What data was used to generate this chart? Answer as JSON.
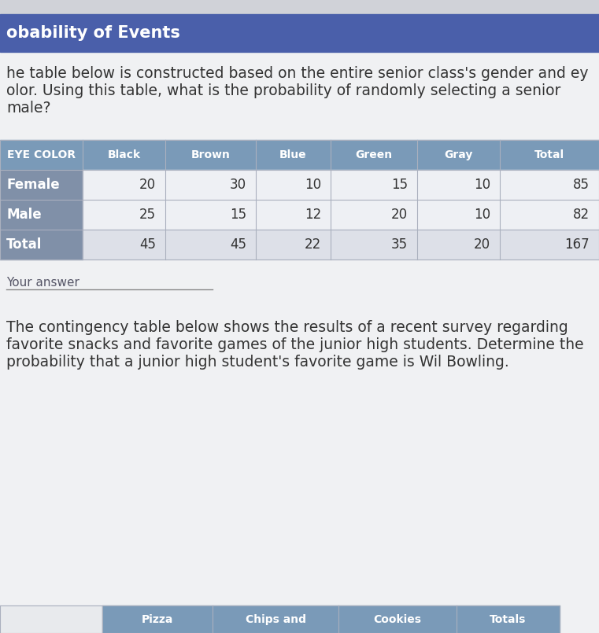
{
  "header_bar_color": "#4a5faa",
  "header_bar_text": "obability of Events",
  "header_bar_fontsize": 15,
  "header_bar_text_color": "#ffffff",
  "page_bg_color": "#e8eaed",
  "body_bg_color": "#f0f1f3",
  "top_strip_color": "#d0d2d8",
  "paragraph1_line1": "he table below is constructed based on the entire senior class's gender and ey",
  "paragraph1_line2": "olor. Using this table, what is the probability of randomly selecting a senior",
  "paragraph1_line3": "male?",
  "paragraph1_fontsize": 13.5,
  "paragraph1_color": "#333333",
  "table1_header_bg": "#7a9ab8",
  "table1_header_text_color": "#ffffff",
  "table1_first_col_bg": "#8090a8",
  "table1_data_bg": "#eef0f4",
  "table1_data_alt_bg": "#dde0e8",
  "table1_sep_color": "#aab0be",
  "table1_col_headers": [
    "EYE COLOR",
    "Black",
    "Brown",
    "Blue",
    "Green",
    "Gray",
    "Total"
  ],
  "table1_rows": [
    [
      "Female",
      "20",
      "30",
      "10",
      "15",
      "10",
      "85"
    ],
    [
      "Male",
      "25",
      "15",
      "12",
      "20",
      "10",
      "82"
    ],
    [
      "Total",
      "45",
      "45",
      "22",
      "35",
      "20",
      "167"
    ]
  ],
  "your_answer_label": "Your answer",
  "your_answer_color": "#555566",
  "paragraph2_line1": "The contingency table below shows the results of a recent survey regarding",
  "paragraph2_line2": "favorite snacks and favorite games of the junior high students. Determine the",
  "paragraph2_line3": "probability that a junior high student's favorite game is Wil Bowling.",
  "paragraph2_fontsize": 13.5,
  "paragraph2_color": "#333333",
  "table2_col_headers": [
    "",
    "Pizza",
    "Chips and",
    "Cookies",
    "Totals"
  ],
  "table2_header_bg": "#7a9ab8",
  "table2_header_text_color": "#ffffff",
  "table2_first_col_bg": "#e8eaed"
}
